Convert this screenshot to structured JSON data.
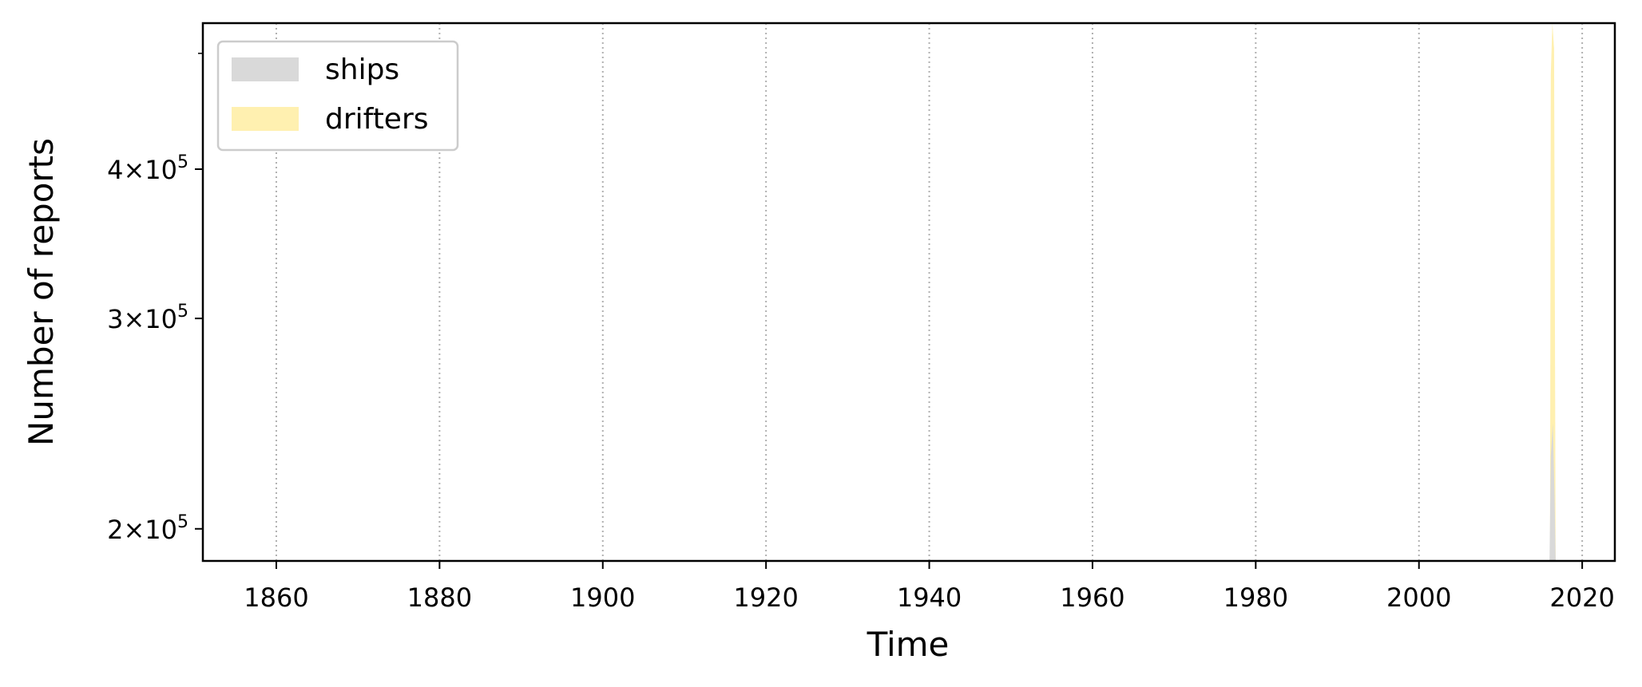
{
  "chart_data": {
    "type": "area",
    "title": "",
    "xlabel": "Time",
    "ylabel": "Number of reports",
    "x_range": [
      1851,
      2024
    ],
    "y_range": [
      188000,
      530000
    ],
    "y_scale": "log",
    "x_ticks": [
      {
        "value": 1860,
        "label": "1860"
      },
      {
        "value": 1880,
        "label": "1880"
      },
      {
        "value": 1900,
        "label": "1900"
      },
      {
        "value": 1920,
        "label": "1920"
      },
      {
        "value": 1940,
        "label": "1940"
      },
      {
        "value": 1960,
        "label": "1960"
      },
      {
        "value": 1980,
        "label": "1980"
      },
      {
        "value": 2000,
        "label": "2000"
      },
      {
        "value": 2020,
        "label": "2020"
      }
    ],
    "y_ticks": [
      {
        "value": 200000,
        "mant": "2",
        "base": "×10",
        "exp": "5"
      },
      {
        "value": 300000,
        "mant": "3",
        "base": "×10",
        "exp": "5"
      },
      {
        "value": 400000,
        "mant": "4",
        "base": "×10",
        "exp": "5"
      }
    ],
    "grid": "x-dotted",
    "legend_position": "top-left",
    "series": [
      {
        "name": "ships",
        "color": "#d9d9d9",
        "points": [
          [
            2016.0,
            188000
          ],
          [
            2016.15,
            230000
          ],
          [
            2016.4,
            245000
          ],
          [
            2016.6,
            215000
          ],
          [
            2016.75,
            188000
          ]
        ]
      },
      {
        "name": "drifters",
        "color": "#fff0b0",
        "points": [
          [
            2016.05,
            188000
          ],
          [
            2016.15,
            480000
          ],
          [
            2016.35,
            530000
          ],
          [
            2016.55,
            505000
          ],
          [
            2016.75,
            188000
          ]
        ]
      }
    ]
  }
}
